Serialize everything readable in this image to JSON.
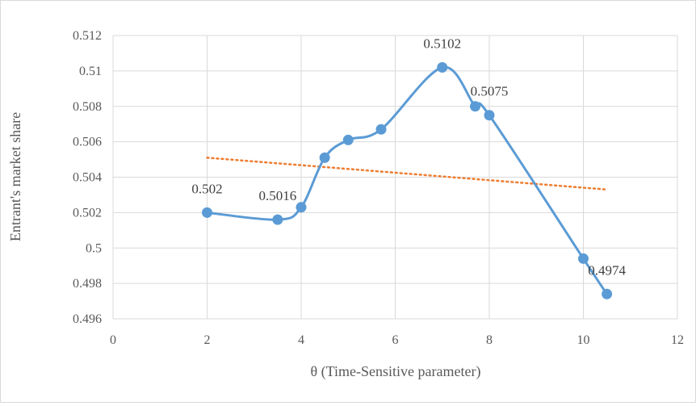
{
  "chart_data": {
    "type": "line",
    "title": "",
    "xlabel": "θ (Time-Sensitive parameter)",
    "ylabel": "Entrant's market share",
    "xlim": [
      0,
      12
    ],
    "ylim": [
      0.496,
      0.512
    ],
    "x_ticks": [
      0,
      2,
      4,
      6,
      8,
      10,
      12
    ],
    "y_ticks": [
      0.496,
      0.498,
      0.5,
      0.502,
      0.504,
      0.506,
      0.508,
      0.51,
      0.512
    ],
    "x_tick_labels": [
      "0",
      "2",
      "4",
      "6",
      "8",
      "10",
      "12"
    ],
    "y_tick_labels": [
      "0.496",
      "0.498",
      "0.5",
      "0.502",
      "0.504",
      "0.506",
      "0.508",
      "0.51",
      "0.512"
    ],
    "grid": true,
    "legend": "none",
    "series": [
      {
        "style": "smoothed line with circle markers",
        "color": "#5b9bd5",
        "x": [
          2,
          3.5,
          4,
          4.5,
          5,
          5.7,
          7,
          7.7,
          8,
          10,
          10.5
        ],
        "y": [
          0.502,
          0.5016,
          0.5023,
          0.5051,
          0.5061,
          0.5067,
          0.5102,
          0.508,
          0.5075,
          0.4994,
          0.4974
        ]
      },
      {
        "style": "linear trendline, dotted",
        "color": "#ed7d31",
        "x": [
          2,
          10.5
        ],
        "y": [
          0.5051,
          0.5033
        ]
      }
    ],
    "data_labels": [
      {
        "x": 2,
        "y": 0.502,
        "text": "0.502"
      },
      {
        "x": 3.5,
        "y": 0.5016,
        "text": "0.5016"
      },
      {
        "x": 7,
        "y": 0.5102,
        "text": "0.5102"
      },
      {
        "x": 8,
        "y": 0.5075,
        "text": "0.5075"
      },
      {
        "x": 10.5,
        "y": 0.4974,
        "text": "0.4974"
      }
    ]
  }
}
